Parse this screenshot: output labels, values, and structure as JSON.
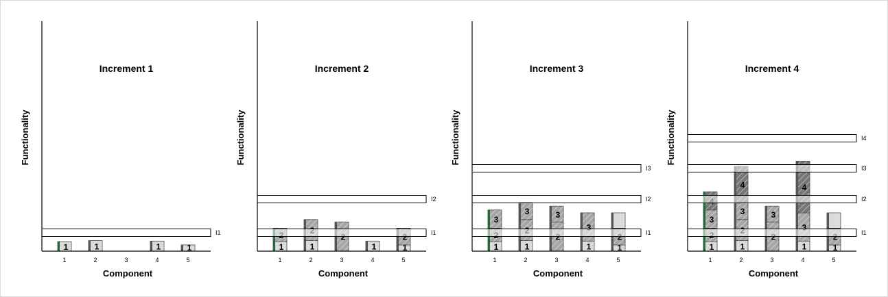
{
  "ylabel": "Functionality",
  "xlabel": "Component",
  "colors": {
    "accent": "#1f6b3a",
    "axis": "#000000",
    "segment_dark": "#777777",
    "segment_mid": "#a6a6a6",
    "segment_light": "#d9d9d9",
    "band_fill": "#ffffff",
    "band_stroke": "#000000"
  },
  "chart_data": [
    {
      "type": "bar",
      "title": "Increment 1",
      "categories": [
        "1",
        "2",
        "3",
        "4",
        "5"
      ],
      "bands": [
        "I1"
      ],
      "bars": [
        {
          "component": "1",
          "segments": [
            {
              "label": "1",
              "height": 1
            }
          ]
        },
        {
          "component": "2",
          "segments": [
            {
              "label": "1",
              "height": 1.1
            }
          ]
        },
        {
          "component": "3",
          "segments": []
        },
        {
          "component": "4",
          "segments": [
            {
              "label": "1",
              "height": 1.05
            }
          ]
        },
        {
          "component": "5",
          "segments": [
            {
              "label": "1",
              "height": 0.65
            }
          ]
        }
      ]
    },
    {
      "type": "bar",
      "title": "Increment 2",
      "categories": [
        "1",
        "2",
        "3",
        "4",
        "5"
      ],
      "bands": [
        "I1",
        "I2"
      ],
      "bars": [
        {
          "component": "1",
          "segments": [
            {
              "label": "1",
              "height": 1
            },
            {
              "label": "2",
              "height": 1.4
            }
          ]
        },
        {
          "component": "2",
          "segments": [
            {
              "label": "1",
              "height": 1.1
            },
            {
              "label": "2",
              "height": 2.2
            }
          ]
        },
        {
          "component": "3",
          "segments": [
            {
              "label": "2",
              "height": 3.05
            }
          ]
        },
        {
          "component": "4",
          "segments": [
            {
              "label": "1",
              "height": 1.05
            }
          ]
        },
        {
          "component": "5",
          "segments": [
            {
              "label": "1",
              "height": 0.65
            },
            {
              "label": "2",
              "height": 1.75
            }
          ]
        }
      ]
    },
    {
      "type": "bar",
      "title": "Increment 3",
      "categories": [
        "1",
        "2",
        "3",
        "4",
        "5"
      ],
      "bands": [
        "I1",
        "I2",
        "I3"
      ],
      "bars": [
        {
          "component": "1",
          "segments": [
            {
              "label": "1",
              "height": 1
            },
            {
              "label": "2",
              "height": 1.4
            },
            {
              "label": "3",
              "height": 1.9
            }
          ]
        },
        {
          "component": "2",
          "segments": [
            {
              "label": "1",
              "height": 1.1
            },
            {
              "label": "2",
              "height": 2.2
            },
            {
              "label": "3",
              "height": 1.8
            }
          ]
        },
        {
          "component": "3",
          "segments": [
            {
              "label": "2",
              "height": 3.05
            },
            {
              "label": "3",
              "height": 1.65
            }
          ]
        },
        {
          "component": "4",
          "segments": [
            {
              "label": "1",
              "height": 1.05
            },
            {
              "label": "3",
              "height": 2.95
            }
          ]
        },
        {
          "component": "5",
          "segments": [
            {
              "label": "1",
              "height": 0.65
            },
            {
              "label": "2",
              "height": 1.75
            },
            {
              "label": "",
              "height": 1.6
            }
          ]
        }
      ]
    },
    {
      "type": "bar",
      "title": "Increment 4",
      "categories": [
        "1",
        "2",
        "3",
        "4",
        "5"
      ],
      "bands": [
        "I1",
        "I2",
        "I3",
        "I4"
      ],
      "bars": [
        {
          "component": "1",
          "segments": [
            {
              "label": "1",
              "height": 1
            },
            {
              "label": "2",
              "height": 1.4
            },
            {
              "label": "3",
              "height": 1.9
            },
            {
              "label": "4",
              "height": 1.9
            }
          ]
        },
        {
          "component": "2",
          "segments": [
            {
              "label": "1",
              "height": 1.1
            },
            {
              "label": "2",
              "height": 2.2
            },
            {
              "label": "3",
              "height": 1.8
            },
            {
              "label": "4",
              "height": 3.75
            }
          ]
        },
        {
          "component": "3",
          "segments": [
            {
              "label": "2",
              "height": 3.05
            },
            {
              "label": "3",
              "height": 1.65
            }
          ]
        },
        {
          "component": "4",
          "segments": [
            {
              "label": "1",
              "height": 1.05
            },
            {
              "label": "3",
              "height": 2.95
            },
            {
              "label": "4",
              "height": 5.4
            }
          ]
        },
        {
          "component": "5",
          "segments": [
            {
              "label": "1",
              "height": 0.65
            },
            {
              "label": "2",
              "height": 1.75
            },
            {
              "label": "",
              "height": 1.6
            }
          ]
        }
      ]
    }
  ]
}
